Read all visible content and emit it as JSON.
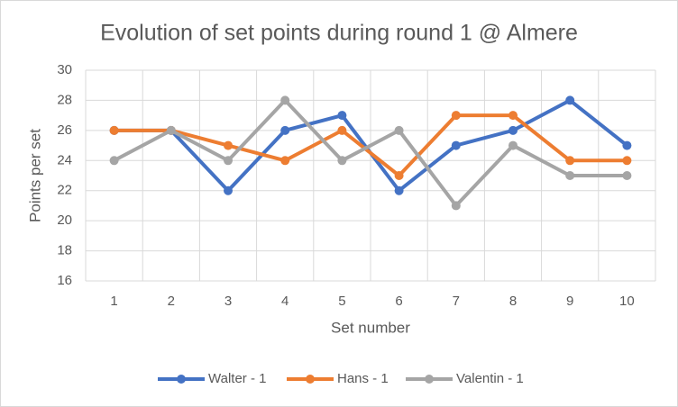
{
  "chart_data": {
    "type": "line",
    "title": "Evolution of set points during round 1 @ Almere",
    "x_label": "Set number",
    "y_label": "Points per set",
    "categories": [
      "1",
      "2",
      "3",
      "4",
      "5",
      "6",
      "7",
      "8",
      "9",
      "10"
    ],
    "series": [
      {
        "name": "Walter - 1",
        "color": "#4472c4",
        "values": [
          26,
          26,
          22,
          26,
          27,
          22,
          25,
          26,
          28,
          25
        ]
      },
      {
        "name": "Hans - 1",
        "color": "#ed7d31",
        "values": [
          26,
          26,
          25,
          24,
          26,
          23,
          27,
          27,
          24,
          24
        ]
      },
      {
        "name": "Valentin - 1",
        "color": "#a5a5a5",
        "values": [
          24,
          26,
          24,
          28,
          24,
          26,
          21,
          25,
          23,
          23
        ]
      }
    ],
    "ylim": [
      16,
      30
    ],
    "yticks": [
      16,
      18,
      20,
      22,
      24,
      26,
      28,
      30
    ],
    "grid": true,
    "legend": "bottom"
  }
}
